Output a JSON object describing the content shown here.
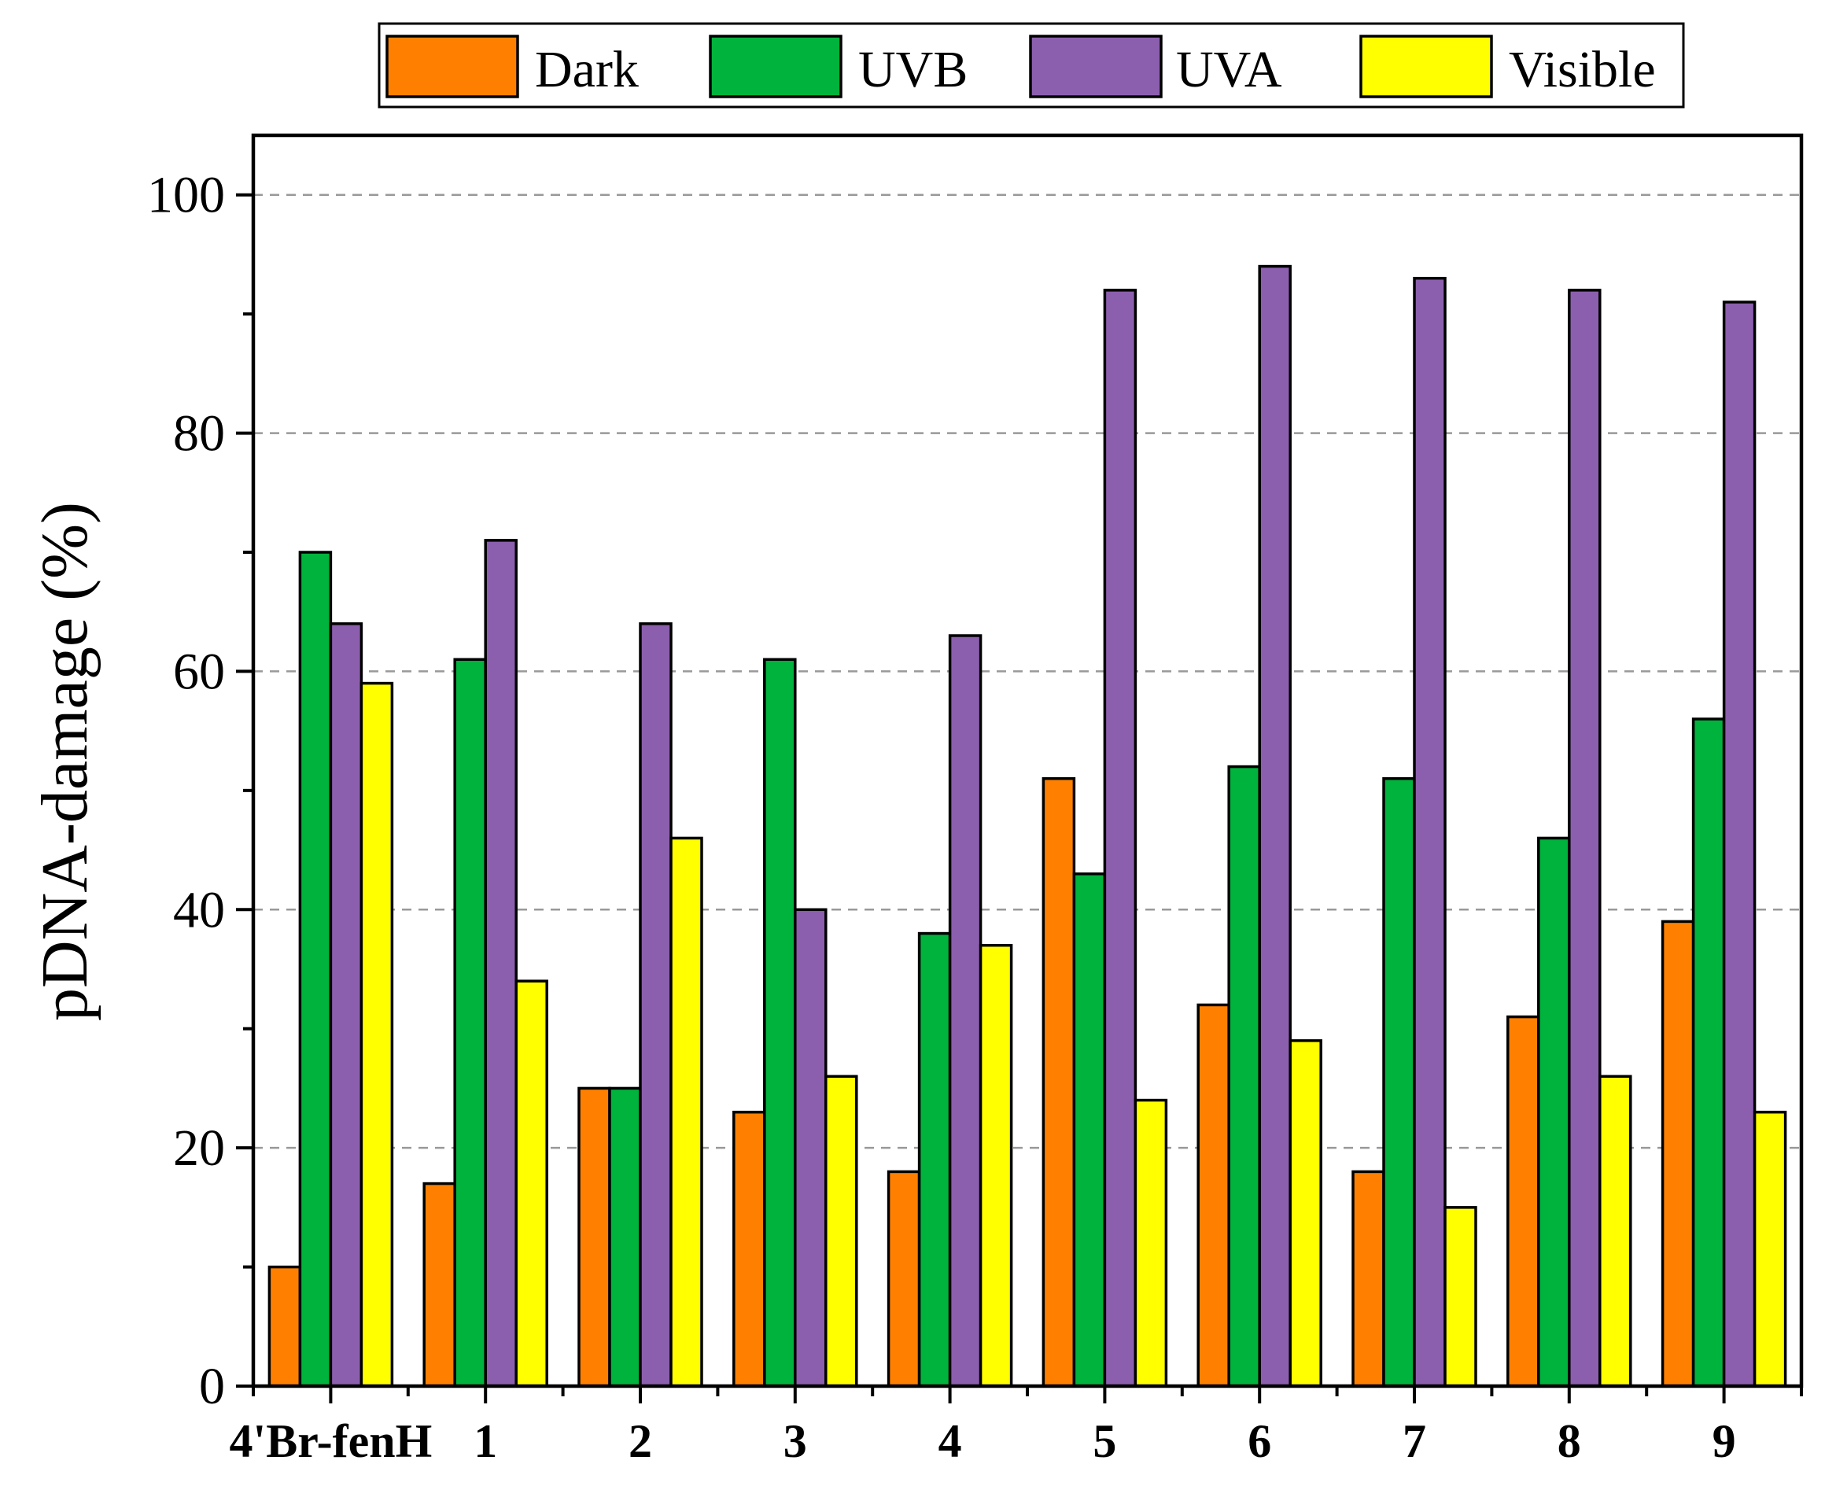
{
  "chart_data": {
    "type": "bar",
    "title": "",
    "xlabel": "",
    "ylabel": "pDNA-damage (%)",
    "ylim": [
      0,
      105
    ],
    "yticks": [
      0,
      20,
      40,
      60,
      80,
      100
    ],
    "grid": "horizontal dashed at major ticks",
    "legend_position": "top",
    "categories": [
      "4'Br-fenH",
      "1",
      "2",
      "3",
      "4",
      "5",
      "6",
      "7",
      "8",
      "9"
    ],
    "series": [
      {
        "name": "Dark",
        "color": "#FF8000",
        "values": [
          10,
          17,
          25,
          23,
          18,
          51,
          32,
          18,
          31,
          39
        ]
      },
      {
        "name": "UVB",
        "color": "#00B33C",
        "values": [
          70,
          61,
          25,
          61,
          38,
          43,
          52,
          51,
          46,
          56
        ]
      },
      {
        "name": "UVA",
        "color": "#8C5FAE",
        "values": [
          64,
          71,
          64,
          40,
          63,
          92,
          94,
          93,
          92,
          91
        ]
      },
      {
        "name": "Visible",
        "color": "#FFFF00",
        "values": [
          59,
          34,
          46,
          26,
          37,
          24,
          29,
          15,
          26,
          23
        ]
      }
    ]
  }
}
